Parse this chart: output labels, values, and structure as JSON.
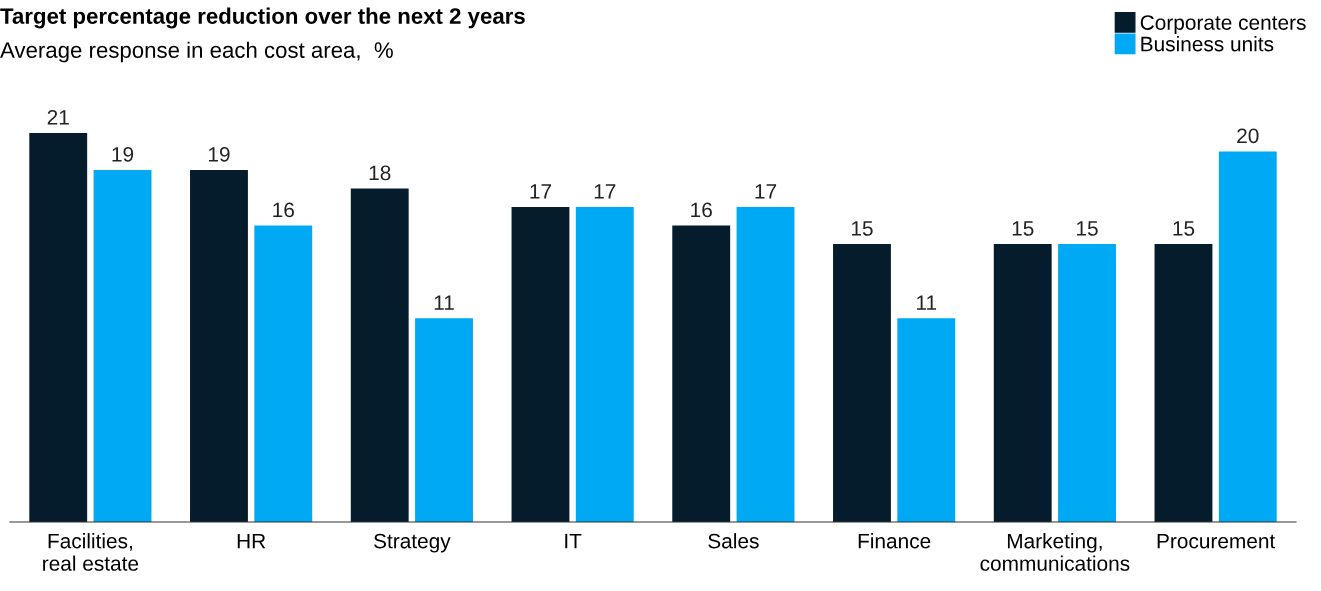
{
  "chart_data": {
    "type": "bar",
    "title": "Target percentage reduction over the next 2 years",
    "subtitle": "Average response in each cost area,  %",
    "categories": [
      "Facilities,\nreal estate",
      "HR",
      "Strategy",
      "IT",
      "Sales",
      "Finance",
      "Marketing,\ncommunications",
      "Procurement"
    ],
    "series": [
      {
        "name": "Corporate centers",
        "color": "#051c2c",
        "values": [
          21,
          19,
          18,
          17,
          16,
          15,
          15,
          15
        ]
      },
      {
        "name": "Business units",
        "color": "#00a9f4",
        "values": [
          19,
          16,
          11,
          17,
          17,
          11,
          15,
          20
        ]
      }
    ],
    "data_labels": true,
    "legend": "top right",
    "grid": false
  }
}
